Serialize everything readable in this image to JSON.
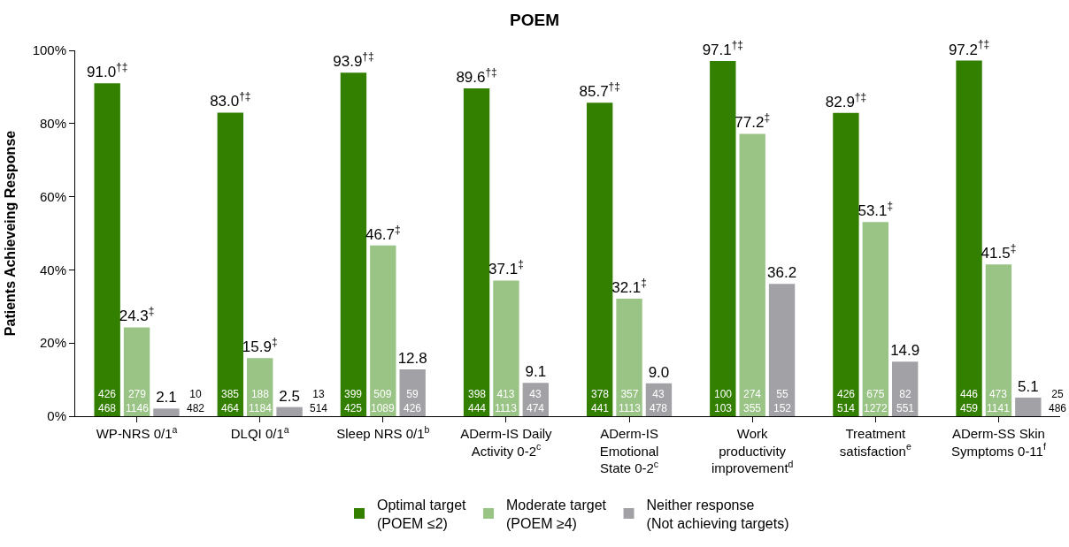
{
  "chart_data": {
    "type": "bar",
    "title": "POEM",
    "ylabel": "Patients Achieveing Response",
    "categories": [
      "WP-NRS 0/1$^{a}$",
      "DLQI 0/1$^{a}$",
      "Sleep NRS 0/1$^{b}$",
      "ADerm-IS Daily\nActivity 0-2$^{c}$",
      "ADerm-IS\nEmotional\nState 0-2$^{c}$",
      "Work\nproductivity\nimprovement$^{d}$",
      "Treatment\nsatisfaction$^{e}$",
      "ADerm-SS Skin\nSymptoms 0-11$^{f}$"
    ],
    "series": [
      {
        "name": "Optimal target\n(POEM ≤2)",
        "color": "#338000",
        "values": [
          91.0,
          83.0,
          93.9,
          89.6,
          85.7,
          97.1,
          82.9,
          97.2
        ],
        "value_labels": [
          "91.0$^{†‡}$",
          "83.0$^{†‡}$",
          "93.9$^{†‡}$",
          "89.6$^{†‡}$",
          "85.7$^{†‡}$",
          "97.1$^{†‡}$",
          "82.9$^{†‡}$",
          "97.2$^{†‡}$"
        ]
      },
      {
        "name": "Moderate target\n(POEM ≥4)",
        "color": "#99c485",
        "values": [
          24.3,
          15.9,
          46.7,
          37.1,
          32.1,
          77.2,
          53.1,
          41.5
        ],
        "value_labels": [
          "24.3$^{‡}$",
          "15.9$^{‡}$",
          "46.7$^{‡}$",
          "37.1$^{‡}$",
          "32.1$^{‡}$",
          "77.2$^{‡}$",
          "53.1$^{‡}$",
          "41.5$^{‡}$"
        ]
      },
      {
        "name": "Neither response\n(Not achieving targets)",
        "color": "#a2a1a6",
        "values": [
          2.1,
          2.5,
          12.8,
          9.1,
          9.0,
          36.2,
          14.9,
          5.1
        ],
        "value_labels": [
          "2.1",
          "2.5",
          "12.8",
          "9.1",
          "9.0",
          "36.2",
          "14.9",
          "5.1"
        ]
      }
    ],
    "annotations": [
      "426\n468",
      "279\n1146",
      "10\n482",
      "385\n464",
      "188\n1184",
      "13\n514",
      "399\n425",
      "509\n1089",
      "59\n426",
      "398\n444",
      "413\n1113",
      "43\n474",
      "378\n441",
      "357\n1113",
      "43\n478",
      "100\n103",
      "274\n355",
      "55\n152",
      "426\n514",
      "675\n1272",
      "82\n551",
      "446\n459",
      "473\n1141",
      "25\n486"
    ],
    "ylim": [
      0,
      100
    ],
    "yticks": [
      {
        "value": 0,
        "label": "0%"
      },
      {
        "value": 20,
        "label": "20%"
      },
      {
        "value": 40,
        "label": "40%"
      },
      {
        "value": 60,
        "label": "60%"
      },
      {
        "value": 80,
        "label": "80%"
      },
      {
        "value": 100,
        "label": "100%"
      }
    ],
    "legend": "bottom"
  }
}
